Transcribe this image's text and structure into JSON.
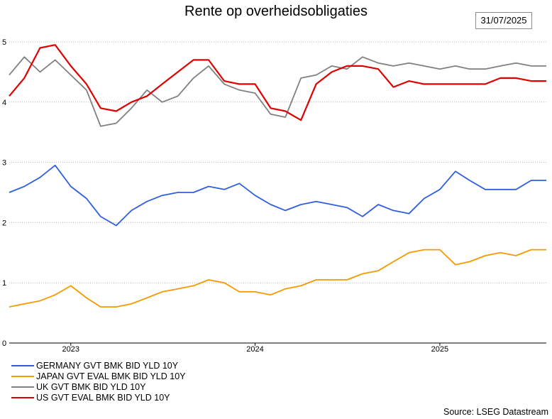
{
  "chart_data": {
    "type": "line",
    "title": "Rente op overheidsobligaties",
    "date_label": "31/07/2025",
    "source": "Source: LSEG Datastream",
    "ylim": [
      0,
      5
    ],
    "yticks": [
      "0",
      "1",
      "2",
      "3",
      "4",
      "5"
    ],
    "xlim": [
      "2022-09-01",
      "2025-07-31"
    ],
    "xticks": [
      {
        "label": "2023",
        "date": "2023-01-01"
      },
      {
        "label": "2024",
        "date": "2024-01-01"
      },
      {
        "label": "2025",
        "date": "2025-01-01"
      }
    ],
    "grid": true,
    "legend_position": "bottom-left",
    "x": [
      "2022-09-01",
      "2022-10-01",
      "2022-11-01",
      "2022-12-01",
      "2023-01-01",
      "2023-02-01",
      "2023-03-01",
      "2023-04-01",
      "2023-05-01",
      "2023-06-01",
      "2023-07-01",
      "2023-08-01",
      "2023-09-01",
      "2023-10-01",
      "2023-11-01",
      "2023-12-01",
      "2024-01-01",
      "2024-02-01",
      "2024-03-01",
      "2024-04-01",
      "2024-05-01",
      "2024-06-01",
      "2024-07-01",
      "2024-08-01",
      "2024-09-01",
      "2024-10-01",
      "2024-11-01",
      "2024-12-01",
      "2025-01-01",
      "2025-02-01",
      "2025-03-01",
      "2025-04-01",
      "2025-05-01",
      "2025-06-01",
      "2025-07-01",
      "2025-07-31"
    ],
    "series": [
      {
        "name": "GERMANY GVT BMK BID YLD 10Y",
        "color": "#2f5fde",
        "values": [
          2.5,
          2.6,
          2.75,
          2.95,
          2.6,
          2.4,
          2.1,
          1.95,
          2.2,
          2.35,
          2.45,
          2.5,
          2.5,
          2.6,
          2.55,
          2.65,
          2.45,
          2.3,
          2.2,
          2.3,
          2.35,
          2.3,
          2.25,
          2.1,
          2.3,
          2.2,
          2.15,
          2.4,
          2.55,
          2.85,
          2.7,
          2.55,
          2.55,
          2.55,
          2.7,
          2.7
        ]
      },
      {
        "name": "JAPAN GVT EVAL BMK BID YLD 10Y",
        "color": "#f59a00",
        "values": [
          0.6,
          0.65,
          0.7,
          0.8,
          0.95,
          0.75,
          0.6,
          0.6,
          0.65,
          0.75,
          0.85,
          0.9,
          0.95,
          1.05,
          1.0,
          0.85,
          0.85,
          0.8,
          0.9,
          0.95,
          1.05,
          1.05,
          1.05,
          1.15,
          1.2,
          1.35,
          1.5,
          1.55,
          1.55,
          1.3,
          1.35,
          1.45,
          1.5,
          1.45,
          1.55,
          1.55
        ]
      },
      {
        "name": "UK GVT BMK BID YLD 10Y",
        "color": "#808080",
        "values": [
          4.45,
          4.75,
          4.5,
          4.7,
          4.45,
          4.2,
          3.6,
          3.65,
          3.9,
          4.2,
          4.0,
          4.1,
          4.4,
          4.6,
          4.3,
          4.2,
          4.15,
          3.8,
          3.75,
          4.4,
          4.45,
          4.6,
          4.55,
          4.75,
          4.65,
          4.6,
          4.65,
          4.6,
          4.55,
          4.6,
          4.55,
          4.55,
          4.6,
          4.65,
          4.6,
          4.6
        ]
      },
      {
        "name": "US GVT EVAL BMK BID YLD 10Y",
        "color": "#e00000",
        "values": [
          4.1,
          4.4,
          4.9,
          4.95,
          4.6,
          4.3,
          3.9,
          3.85,
          4.0,
          4.1,
          4.3,
          4.5,
          4.7,
          4.7,
          4.35,
          4.3,
          4.3,
          3.9,
          3.85,
          3.7,
          4.3,
          4.5,
          4.6,
          4.6,
          4.55,
          4.25,
          4.35,
          4.3,
          4.3,
          4.3,
          4.3,
          4.3,
          4.4,
          4.4,
          4.35,
          4.35
        ]
      }
    ]
  }
}
